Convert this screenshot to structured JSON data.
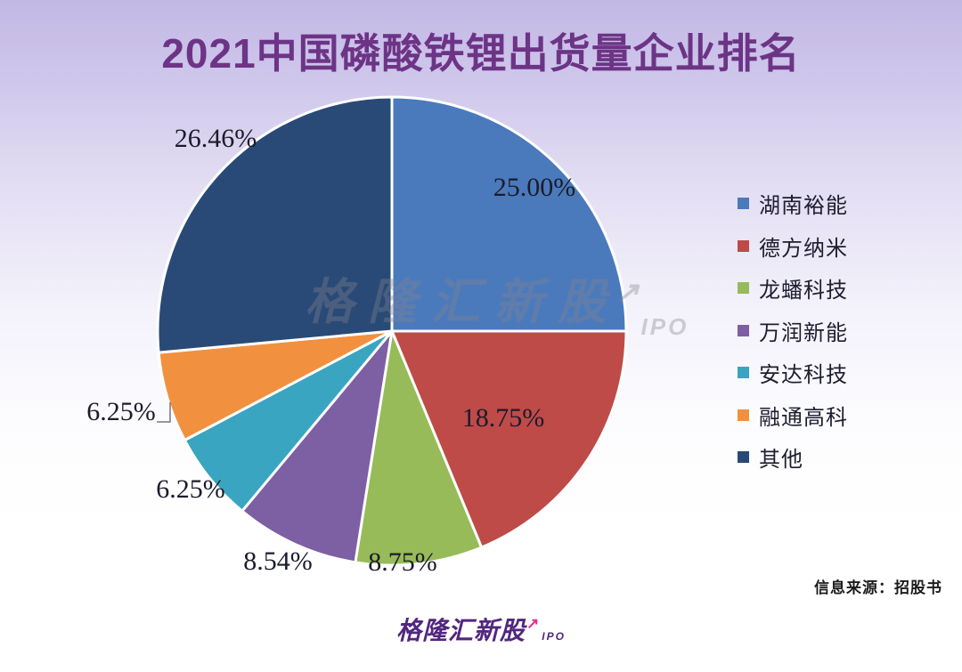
{
  "title": "2021中国磷酸铁锂出货量企业排名",
  "source_note": "信息来源：招股书",
  "watermark": {
    "text": "格隆汇新股",
    "suffix": "IPO"
  },
  "footer_logo": {
    "text": "格隆汇新股",
    "suffix": "IPO"
  },
  "colors": {
    "title": "#6d3486",
    "logo_purple": "#52267f",
    "logo_arrow_magenta": "#e62e8a",
    "background_top": "#c2b8e6",
    "background_bottom": "#ffffff"
  },
  "chart_data": {
    "type": "pie",
    "title": "2021中国磷酸铁锂出货量企业排名",
    "legend_position": "right",
    "start_angle_deg": 0,
    "direction": "clockwise",
    "slices": [
      {
        "name": "湖南裕能",
        "value": 25.0,
        "label": "25.00%",
        "color": "#4a7abb"
      },
      {
        "name": "德方纳米",
        "value": 18.75,
        "label": "18.75%",
        "color": "#be4b48"
      },
      {
        "name": "龙蟠科技",
        "value": 8.75,
        "label": "8.75%",
        "color": "#97bb58"
      },
      {
        "name": "万润新能",
        "value": 8.54,
        "label": "8.54%",
        "color": "#7d5fa4"
      },
      {
        "name": "安达科技",
        "value": 6.25,
        "label": "6.25%",
        "color": "#39a5c1"
      },
      {
        "name": "融通高科",
        "value": 6.25,
        "label": "6.25%",
        "color": "#f1913f"
      },
      {
        "name": "其他",
        "value": 26.46,
        "label": "26.46%",
        "color": "#294a76"
      }
    ]
  }
}
